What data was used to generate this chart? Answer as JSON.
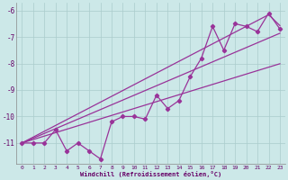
{
  "xlabel": "Windchill (Refroidissement éolien,°C)",
  "background_color": "#cce8e8",
  "grid_color": "#aacccc",
  "line_color": "#993399",
  "x_data": [
    0,
    1,
    2,
    3,
    4,
    5,
    6,
    7,
    8,
    9,
    10,
    11,
    12,
    13,
    14,
    15,
    16,
    17,
    18,
    19,
    20,
    21,
    22,
    23
  ],
  "y_main": [
    -11.0,
    -11.0,
    -11.0,
    -10.5,
    -11.3,
    -11.0,
    -11.3,
    -11.6,
    -10.2,
    -10.0,
    -10.0,
    -10.1,
    -9.2,
    -9.7,
    -9.4,
    -8.5,
    -7.8,
    -6.6,
    -7.5,
    -6.5,
    -6.6,
    -6.8,
    -6.1,
    -6.7
  ],
  "y_line1": [
    -11.0,
    -10.78,
    -10.56,
    -10.34,
    -10.12,
    -9.9,
    -9.68,
    -9.46,
    -9.24,
    -9.02,
    -8.8,
    -8.58,
    -8.36,
    -8.14,
    -7.92,
    -7.7,
    -7.48,
    -7.26,
    -7.04,
    -6.82,
    -6.6,
    -6.38,
    -6.16,
    -6.57
  ],
  "y_line2": [
    -11.0,
    -10.82,
    -10.64,
    -10.46,
    -10.28,
    -10.1,
    -9.92,
    -9.74,
    -9.56,
    -9.38,
    -9.2,
    -9.02,
    -8.84,
    -8.66,
    -8.48,
    -8.3,
    -8.12,
    -7.94,
    -7.76,
    -7.58,
    -7.4,
    -7.22,
    -7.04,
    -6.86
  ],
  "y_line3": [
    -11.0,
    -10.87,
    -10.74,
    -10.61,
    -10.48,
    -10.35,
    -10.22,
    -10.09,
    -9.96,
    -9.83,
    -9.7,
    -9.57,
    -9.44,
    -9.31,
    -9.18,
    -9.05,
    -8.92,
    -8.79,
    -8.66,
    -8.53,
    -8.4,
    -8.27,
    -8.14,
    -8.01
  ],
  "ylim": [
    -11.8,
    -5.7
  ],
  "xlim": [
    -0.5,
    23.5
  ],
  "xticks": [
    0,
    1,
    2,
    3,
    4,
    5,
    6,
    7,
    8,
    9,
    10,
    11,
    12,
    13,
    14,
    15,
    16,
    17,
    18,
    19,
    20,
    21,
    22,
    23
  ],
  "yticks": [
    -11,
    -10,
    -9,
    -8,
    -7,
    -6
  ],
  "figsize": [
    3.2,
    2.0
  ],
  "dpi": 100
}
